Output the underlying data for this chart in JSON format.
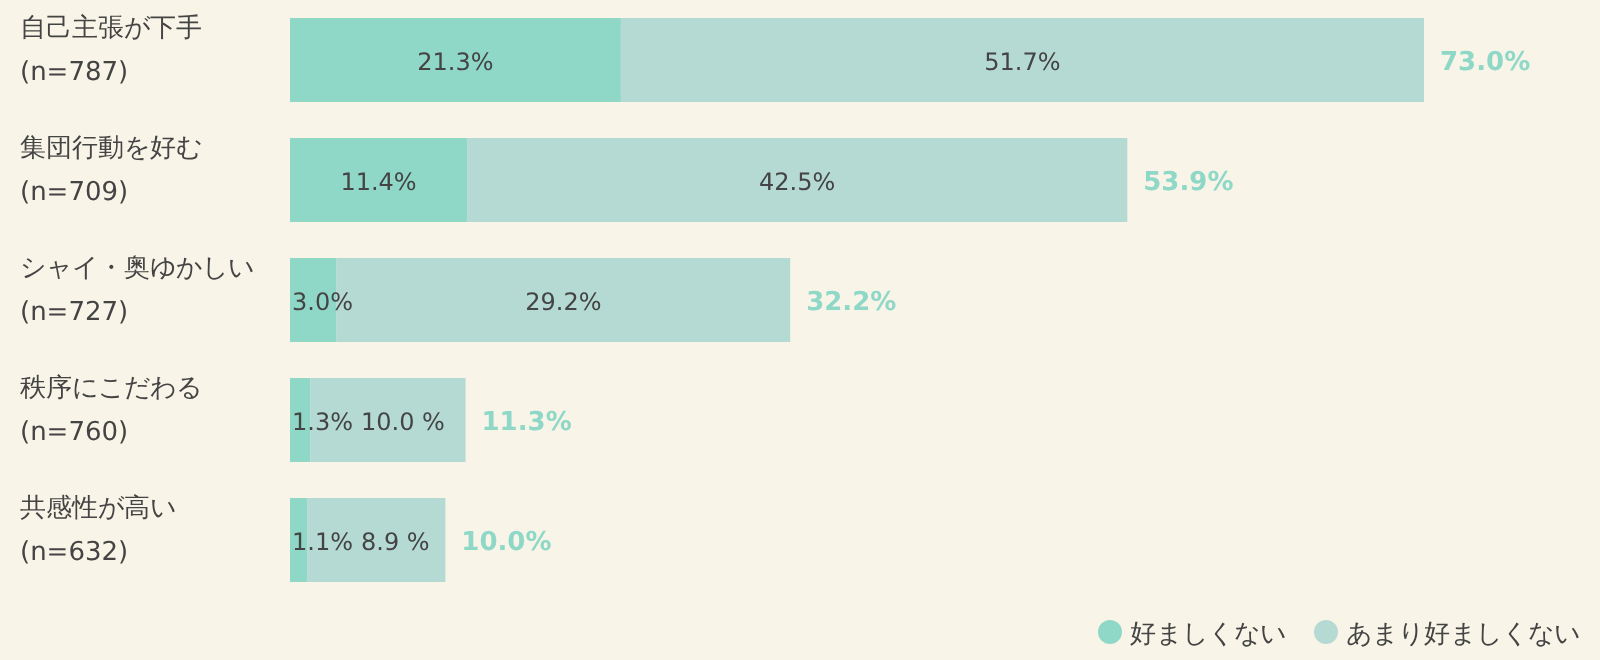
{
  "chart_data": {
    "type": "bar",
    "orientation": "horizontal",
    "stacked": true,
    "categories": [
      "自己主張が下手\n(n=787)",
      "集団行動を好む\n(n=709)",
      "シャイ・奥ゆかしい\n(n=727)",
      "秩序にこだわる\n(n=760)",
      "共感性が高い\n(n=632)"
    ],
    "series": [
      {
        "name": "好ましくない",
        "color": "#8fd8c8",
        "values": [
          21.3,
          11.4,
          3.0,
          1.3,
          1.1
        ],
        "value_labels": [
          "21.3%",
          "11.4%",
          "3.0%",
          "1.3%",
          "1.1%"
        ]
      },
      {
        "name": "あまり好ましくない",
        "color": "#b5dad3",
        "values": [
          51.7,
          42.5,
          29.2,
          10.0,
          8.9
        ],
        "value_labels": [
          "51.7%",
          "42.5%",
          "29.2%",
          "10.0 %",
          "8.9 %"
        ]
      }
    ],
    "totals": [
      "73.0%",
      "53.9%",
      "32.2%",
      "11.3%",
      "10.0%"
    ],
    "legend": "bottom right"
  }
}
